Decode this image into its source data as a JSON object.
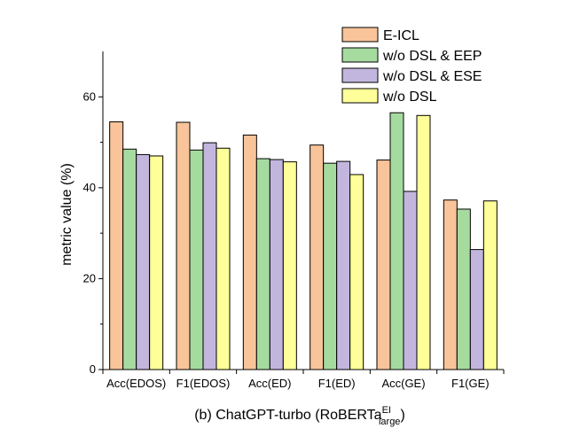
{
  "chart_data": {
    "type": "bar",
    "caption": {
      "main": "(b) ChatGPT-turbo (RoBERTa",
      "sup": "EI",
      "sub": "large",
      "end": ")"
    },
    "ylabel": "metric value (%)",
    "xlabel": "",
    "ylim": [
      0,
      70
    ],
    "yticks": [
      0,
      20,
      40,
      60
    ],
    "categories": [
      "Acc(EDOS)",
      "F1(EDOS)",
      "Acc(ED)",
      "F1(ED)",
      "Acc(GE)",
      "F1(GE)"
    ],
    "series": [
      {
        "name": "E-ICL",
        "color": "#F9C49A",
        "values": [
          54.5,
          54.4,
          51.6,
          49.4,
          46.1,
          37.3
        ]
      },
      {
        "name": "w/o DSL & EEP",
        "color": "#A6DBA0",
        "values": [
          48.5,
          48.3,
          46.4,
          45.4,
          56.5,
          35.3
        ]
      },
      {
        "name": "w/o DSL & ESE",
        "color": "#C2B6DE",
        "values": [
          47.3,
          49.9,
          46.2,
          45.8,
          39.2,
          26.4
        ]
      },
      {
        "name": "w/o DSL",
        "color": "#FFFF99",
        "values": [
          47.0,
          48.7,
          45.7,
          42.9,
          55.9,
          37.1
        ]
      }
    ],
    "legend": "top-right",
    "grid": false
  }
}
